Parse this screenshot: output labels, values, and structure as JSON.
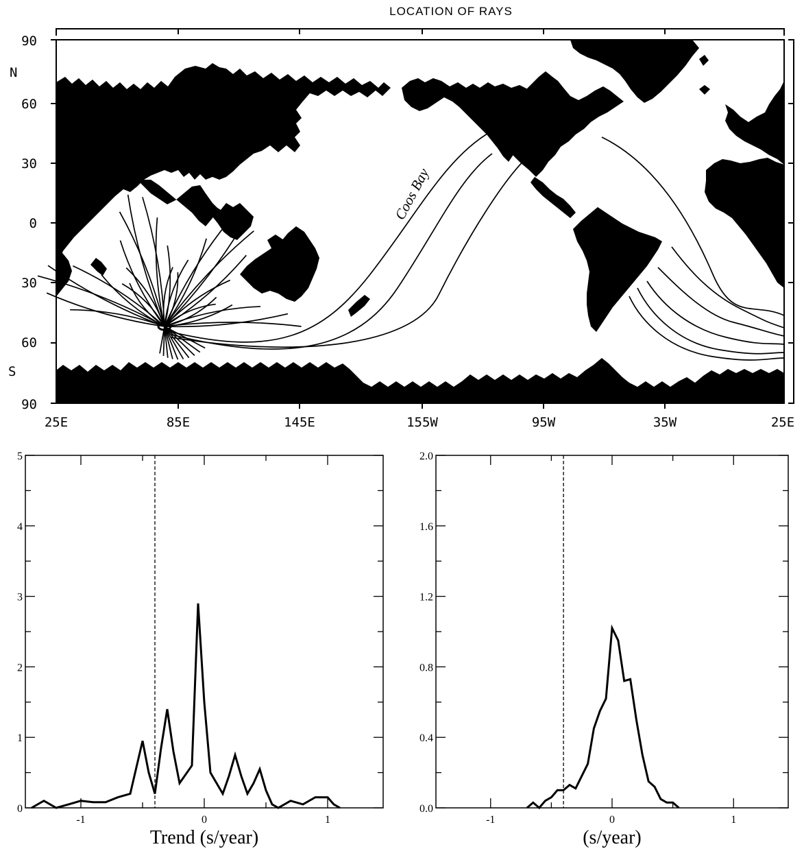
{
  "map": {
    "title": "LOCATION OF RAYS",
    "lat_ticks": [
      "90",
      "60",
      "30",
      "0",
      "30",
      "60",
      "90"
    ],
    "lat_dirs": {
      "north": "N",
      "south": "S"
    },
    "lon_ticks": [
      "25E",
      "85E",
      "145E",
      "155W",
      "95W",
      "35W",
      "25E"
    ],
    "ray_label": "Coos Bay",
    "colors": {
      "land": "#000000",
      "ocean": "#ffffff"
    }
  },
  "chart_data": [
    {
      "type": "line",
      "xlabel": "Trend (s/year)",
      "ylabel": "",
      "xlim": [
        -1.45,
        1.45
      ],
      "ylim": [
        0,
        5
      ],
      "xticks": [
        "-1",
        "0",
        "1"
      ],
      "yticks": [
        "0",
        "1",
        "2",
        "3",
        "4",
        "5"
      ],
      "series": [
        {
          "x": [
            -1.4,
            -1.3,
            -1.2,
            -1.1,
            -1.0,
            -0.9,
            -0.8,
            -0.7,
            -0.6,
            -0.5,
            -0.45,
            -0.4,
            -0.35,
            -0.3,
            -0.25,
            -0.2,
            -0.1,
            -0.05,
            0.0,
            0.05,
            0.1,
            0.15,
            0.2,
            0.25,
            0.3,
            0.35,
            0.4,
            0.45,
            0.5,
            0.55,
            0.6,
            0.7,
            0.8,
            0.9,
            1.0,
            1.05,
            1.1
          ],
          "y": [
            0.0,
            0.1,
            0.0,
            0.05,
            0.1,
            0.08,
            0.08,
            0.15,
            0.2,
            0.95,
            0.5,
            0.2,
            0.85,
            1.4,
            0.8,
            0.35,
            0.6,
            2.9,
            1.5,
            0.5,
            0.35,
            0.2,
            0.45,
            0.75,
            0.45,
            0.2,
            0.35,
            0.55,
            0.25,
            0.05,
            0.0,
            0.1,
            0.05,
            0.15,
            0.15,
            0.05,
            0.0
          ]
        }
      ],
      "reference_line_x": -0.4
    },
    {
      "type": "line",
      "xlabel": "(s/year)",
      "ylabel": "",
      "xlim": [
        -1.45,
        1.45
      ],
      "ylim": [
        0,
        2.0
      ],
      "xticks": [
        "-1",
        "0",
        "1"
      ],
      "yticks": [
        "0.0",
        "0.4",
        "0.8",
        "1.2",
        "1.6",
        "2.0"
      ],
      "series": [
        {
          "x": [
            -0.7,
            -0.65,
            -0.6,
            -0.55,
            -0.5,
            -0.45,
            -0.4,
            -0.35,
            -0.3,
            -0.25,
            -0.2,
            -0.15,
            -0.1,
            -0.05,
            0.0,
            0.05,
            0.1,
            0.15,
            0.2,
            0.25,
            0.3,
            0.35,
            0.4,
            0.45,
            0.5,
            0.55
          ],
          "y": [
            0.0,
            0.03,
            0.0,
            0.04,
            0.06,
            0.1,
            0.1,
            0.13,
            0.11,
            0.18,
            0.25,
            0.45,
            0.55,
            0.62,
            1.02,
            0.95,
            0.72,
            0.73,
            0.5,
            0.3,
            0.15,
            0.12,
            0.05,
            0.03,
            0.03,
            0.0
          ]
        }
      ],
      "reference_line_x": -0.4
    }
  ]
}
